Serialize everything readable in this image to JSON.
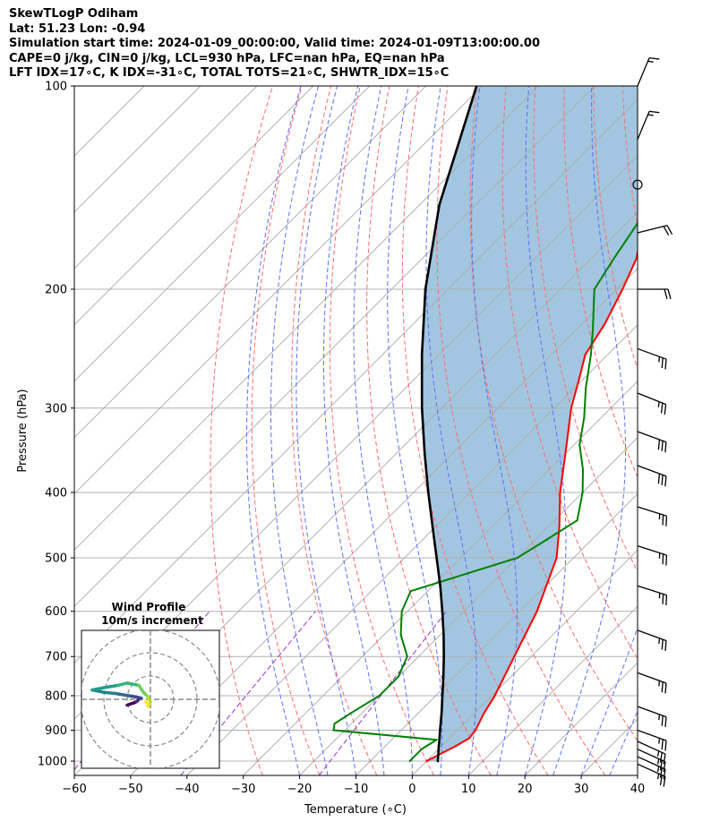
{
  "header": {
    "line1": "SkewTLogP Odiham",
    "line2": "Lat: 51.23   Lon: -0.94",
    "line3": "Simulation start time: 2024-01-09_00:00:00, Valid time: 2024-01-09T13:00:00.00",
    "line4": "CAPE=0 j/kg, CIN=0 j/kg, LCL=930 hPa, LFC=nan hPa, EQ=nan hPa",
    "line5": "LFT IDX=17∘C, K IDX=-31∘C, TOTAL TOTS=21∘C, SHWTR_IDX=15∘C"
  },
  "hodograph": {
    "title": "Wind Profile",
    "subtitle": "10m/s increment"
  },
  "colors": {
    "temperature": "#ff0000",
    "dewpoint": "#008000",
    "parcel": "#000000",
    "cape_fill": "#a2c6df",
    "dry_adiabat": "#ff6a6a",
    "moist_adiabat": "#5a6fff",
    "mixing_ratio": "#9b30c8",
    "isotherm": "#aaaaaa"
  },
  "chart_data": {
    "type": "line",
    "title": "SkewTLogP Odiham",
    "xlabel": "Temperature (∘C)",
    "ylabel": "Pressure (hPa)",
    "xlim": [
      -60,
      40
    ],
    "ylim": [
      1050,
      100
    ],
    "y_scale": "log",
    "x_ticks": [
      "−60",
      "−50",
      "−40",
      "−30",
      "−20",
      "−10",
      "0",
      "10",
      "20",
      "30",
      "40"
    ],
    "y_ticks": [
      "100",
      "200",
      "300",
      "400",
      "500",
      "600",
      "700",
      "800",
      "900",
      "1000"
    ],
    "grid": true,
    "series": [
      {
        "key": "temperature",
        "pressure": [
          1000,
          950,
          925,
          900,
          850,
          800,
          700,
          600,
          500,
          450,
          400,
          350,
          300,
          270,
          250,
          225,
          200,
          180,
          160,
          140,
          120,
          100
        ],
        "values": [
          0,
          2.5,
          3.5,
          3.2,
          1.7,
          0.5,
          -3,
          -7,
          -13,
          -18,
          -24,
          -30,
          -37,
          -41,
          -44,
          -46,
          -49,
          -52,
          -57,
          -62,
          -68,
          -74
        ]
      },
      {
        "key": "dewpoint",
        "pressure": [
          1000,
          960,
          930,
          900,
          880,
          850,
          800,
          750,
          700,
          650,
          600,
          560,
          500,
          470,
          440,
          400,
          370,
          340,
          310,
          280,
          250,
          230,
          200,
          180,
          160,
          140,
          120,
          100
        ],
        "values": [
          -3,
          -3,
          -2,
          -22,
          -23,
          -22,
          -20,
          -20,
          -22,
          -27,
          -31,
          -33,
          -20,
          -18,
          -16,
          -20,
          -24,
          -29,
          -33,
          -38,
          -43,
          -47,
          -54,
          -56,
          -58,
          -60,
          -62,
          -64
        ]
      },
      {
        "key": "parcel",
        "pressure": [
          1000,
          950,
          930,
          900,
          850,
          800,
          750,
          700,
          650,
          600,
          550,
          500,
          450,
          400,
          350,
          300,
          250,
          200,
          150,
          100
        ],
        "values": [
          2,
          -0.5,
          -1.5,
          -3.1,
          -5.8,
          -8.8,
          -12,
          -15.5,
          -19.4,
          -23.8,
          -28.7,
          -34.3,
          -40.5,
          -47.4,
          -55,
          -63.5,
          -73,
          -84,
          -96.5,
          -111
        ]
      }
    ],
    "wind_barbs": [
      {
        "pressure": 100,
        "u": 5,
        "v": 12
      },
      {
        "pressure": 120,
        "u": 5,
        "v": 12
      },
      {
        "pressure": 140,
        "u": 0,
        "v": 0
      },
      {
        "pressure": 165,
        "u": 20,
        "v": 5
      },
      {
        "pressure": 200,
        "u": 20,
        "v": 0
      },
      {
        "pressure": 245,
        "u": 22,
        "v": -8
      },
      {
        "pressure": 285,
        "u": 25,
        "v": -10
      },
      {
        "pressure": 325,
        "u": 27,
        "v": -10
      },
      {
        "pressure": 365,
        "u": 27,
        "v": -10
      },
      {
        "pressure": 420,
        "u": 25,
        "v": -8
      },
      {
        "pressure": 480,
        "u": 25,
        "v": -8
      },
      {
        "pressure": 550,
        "u": 25,
        "v": -8
      },
      {
        "pressure": 640,
        "u": 22,
        "v": -8
      },
      {
        "pressure": 740,
        "u": 22,
        "v": -8
      },
      {
        "pressure": 830,
        "u": 22,
        "v": -8
      },
      {
        "pressure": 900,
        "u": 22,
        "v": -8
      },
      {
        "pressure": 935,
        "u": 22,
        "v": -10
      },
      {
        "pressure": 960,
        "u": 22,
        "v": -10
      },
      {
        "pressure": 985,
        "u": 22,
        "v": -10
      },
      {
        "pressure": 1010,
        "u": 22,
        "v": -10
      }
    ],
    "hodograph_points": [
      {
        "u": -10,
        "v": -2.5
      },
      {
        "u": -7,
        "v": -1.5
      },
      {
        "u": -6,
        "v": -1
      },
      {
        "u": -5,
        "v": 0
      },
      {
        "u": -4,
        "v": 0.5
      },
      {
        "u": -6,
        "v": 1
      },
      {
        "u": -9,
        "v": 1.5
      },
      {
        "u": -12,
        "v": 2
      },
      {
        "u": -15,
        "v": 2.5
      },
      {
        "u": -20,
        "v": 3
      },
      {
        "u": -25,
        "v": 4
      },
      {
        "u": -20,
        "v": 5
      },
      {
        "u": -14,
        "v": 6
      },
      {
        "u": -10,
        "v": 7
      },
      {
        "u": -5,
        "v": 6
      },
      {
        "u": -3,
        "v": 3
      },
      {
        "u": -1,
        "v": 1
      },
      {
        "u": 0,
        "v": -1
      },
      {
        "u": -1,
        "v": -3
      },
      {
        "u": -1,
        "v": -2
      },
      {
        "u": -2,
        "v": -1
      }
    ]
  }
}
